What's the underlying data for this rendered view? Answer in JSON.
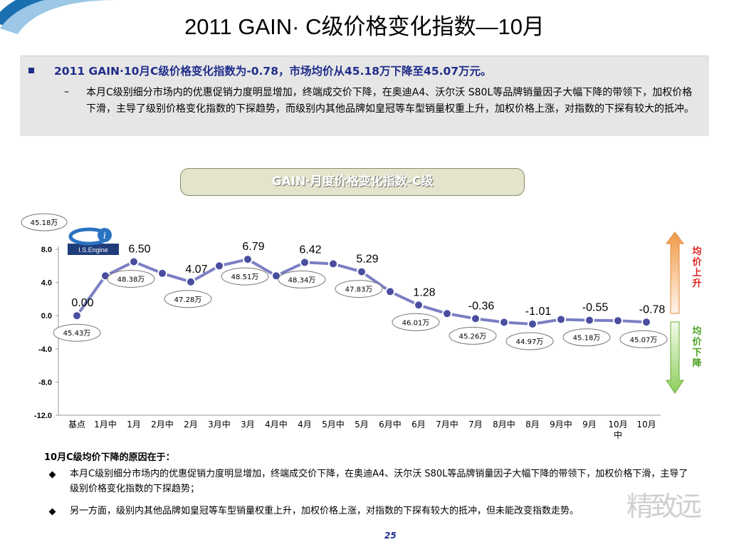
{
  "title": "2011 GAIN· C级价格变化指数—10月",
  "summary": {
    "headline": "2011 GAIN·10月C级价格变化指数为-0.78，市场均价从45.18万下降至45.07万元。",
    "detail": "本月C级别细分市场内的优惠促销力度明显增加，终端成交价下降，在奥迪A4、沃尔沃 S80L等品牌销量因子大幅下降的带领下，加权价格下滑，主导了级别价格变化指数的下探趋势，而级别内其他品牌如皇冠等车型销量权重上升，加权价格上涨，对指数的下探有较大的抵冲。"
  },
  "logo": {
    "text": "I.S.Engine"
  },
  "chart_data": {
    "type": "line",
    "title": "GAIN·月度价格变化指数-C级",
    "categories": [
      "基点",
      "1月中",
      "1月",
      "2月中",
      "2月",
      "3月中",
      "3月",
      "4月中",
      "4月",
      "5月中",
      "5月",
      "6月中",
      "6月",
      "7月中",
      "7月",
      "8月中",
      "8月",
      "9月中",
      "9月",
      "10月中",
      "10月"
    ],
    "values": [
      0.0,
      4.8,
      6.5,
      5.1,
      4.07,
      6.0,
      6.79,
      4.8,
      6.42,
      6.25,
      5.29,
      2.9,
      1.28,
      0.25,
      -0.36,
      -0.8,
      -1.01,
      -0.45,
      -0.55,
      -0.6,
      -0.78
    ],
    "value_labels": [
      {
        "index": 0,
        "text": "0.00"
      },
      {
        "index": 2,
        "text": "6.50"
      },
      {
        "index": 4,
        "text": "4.07"
      },
      {
        "index": 6,
        "text": "6.79"
      },
      {
        "index": 8,
        "text": "6.42"
      },
      {
        "index": 10,
        "text": "5.29"
      },
      {
        "index": 12,
        "text": "1.28"
      },
      {
        "index": 14,
        "text": "-0.36"
      },
      {
        "index": 16,
        "text": "-1.01"
      },
      {
        "index": 18,
        "text": "-0.55"
      },
      {
        "index": 20,
        "text": "-0.78"
      }
    ],
    "price_callouts": [
      {
        "index": 0,
        "text": "45.43万",
        "side": "below"
      },
      {
        "index": 2,
        "text": "48.38万",
        "side": "below"
      },
      {
        "index": 4,
        "text": "47.28万",
        "side": "below"
      },
      {
        "index": 6,
        "text": "48.51万",
        "side": "below"
      },
      {
        "index": 8,
        "text": "48.34万",
        "side": "below"
      },
      {
        "index": 10,
        "text": "47.83万",
        "side": "below"
      },
      {
        "index": 12,
        "text": "46.01万",
        "side": "below"
      },
      {
        "index": 14,
        "text": "45.26万",
        "side": "below"
      },
      {
        "index": 16,
        "text": "44.97万",
        "side": "below"
      },
      {
        "index": 18,
        "text": "45.18万",
        "side": "below"
      },
      {
        "index": 20,
        "text": "45.07万",
        "side": "below"
      }
    ],
    "start_callout": "45.18万",
    "yticks": [
      8.0,
      4.0,
      0.0,
      -4.0,
      -8.0,
      -12.0
    ],
    "ytick_labels": [
      "8.0",
      "4.0",
      "0.0",
      "-4.0",
      "-8.0",
      "-12.0"
    ],
    "ylim": [
      -12,
      8
    ],
    "xlabel": "",
    "ylabel": "",
    "grid": false,
    "colors": {
      "line": "#7b7fc4",
      "marker": "#4a4ea0"
    }
  },
  "arrows": {
    "up_label": "均价上升",
    "down_label": "均价下降",
    "up_color": "#f09a4a",
    "down_color": "#8ccf5a"
  },
  "reasons": {
    "title": "10月C级均价下降的原因在于：",
    "items": [
      "本月C级别细分市场内的优惠促销力度明显增加，终端成交价下降，在奥迪A4、沃尔沃 S80L等品牌销量因子大幅下降的带领下，加权价格下滑，主导了级别价格变化指数的下探趋势；",
      "另一方面，级别内其他品牌如皇冠等车型销量权重上升，加权价格上涨，对指数的下探有较大的抵冲，但未能改变指数走势。"
    ]
  },
  "page_number": "25",
  "watermark": "精致远"
}
